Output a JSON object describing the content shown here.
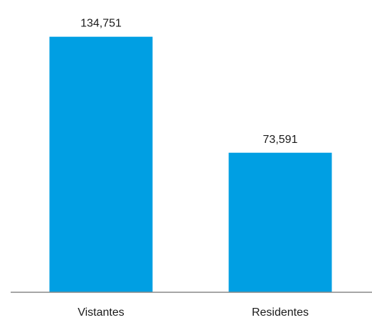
{
  "chart_data": {
    "type": "bar",
    "title": "",
    "xlabel": "",
    "ylabel": "",
    "categories": [
      "Vistantes",
      "Residentes"
    ],
    "values": [
      134751,
      73591
    ],
    "value_labels": [
      "134,751",
      "73,591"
    ],
    "ylim": [
      0,
      150000
    ],
    "grid": false,
    "bar_color": "#009FE3",
    "axis_color": "#888888"
  }
}
